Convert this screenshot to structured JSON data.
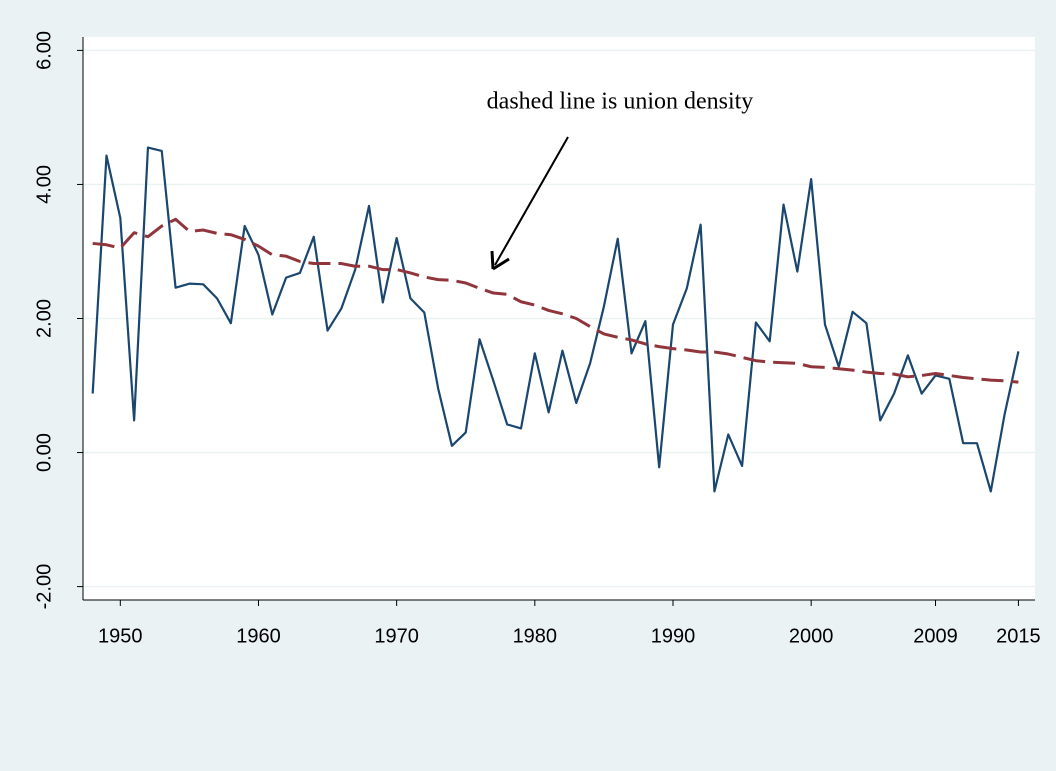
{
  "chart_data": {
    "type": "line",
    "annotation": "dashed line is union density",
    "x": [
      1948,
      1949,
      1950,
      1951,
      1952,
      1953,
      1954,
      1955,
      1956,
      1957,
      1958,
      1959,
      1960,
      1961,
      1962,
      1963,
      1964,
      1965,
      1966,
      1967,
      1968,
      1969,
      1970,
      1971,
      1972,
      1973,
      1974,
      1975,
      1976,
      1977,
      1978,
      1979,
      1980,
      1981,
      1982,
      1983,
      1984,
      1985,
      1986,
      1987,
      1988,
      1989,
      1990,
      1991,
      1992,
      1993,
      1994,
      1995,
      1996,
      1997,
      1998,
      1999,
      2000,
      2001,
      2002,
      2003,
      2004,
      2005,
      2006,
      2007,
      2008,
      2009,
      2010,
      2011,
      2012,
      2013,
      2014,
      2015
    ],
    "series": [
      {
        "color": "#1a476f",
        "dash": false,
        "values": [
          0.88,
          4.43,
          3.5,
          0.48,
          4.55,
          4.5,
          2.46,
          2.52,
          2.51,
          2.3,
          1.93,
          3.38,
          2.95,
          2.06,
          2.61,
          2.68,
          3.22,
          1.82,
          2.15,
          2.73,
          3.68,
          2.24,
          3.2,
          2.3,
          2.09,
          0.96,
          0.1,
          0.3,
          1.69,
          1.07,
          0.42,
          0.36,
          1.48,
          0.6,
          1.52,
          0.74,
          1.33,
          2.18,
          3.19,
          1.48,
          1.96,
          -0.22,
          1.91,
          2.45,
          3.4,
          -0.58,
          0.27,
          -0.2,
          1.94,
          1.66,
          3.7,
          2.7,
          4.08,
          1.91,
          1.28,
          2.1,
          1.93,
          0.48,
          0.88,
          1.45,
          0.88,
          1.15,
          1.1,
          0.14,
          0.14,
          -0.58,
          0.57,
          1.51
        ]
      },
      {
        "color": "#90353b",
        "dash": true,
        "values": [
          3.12,
          3.1,
          3.05,
          3.28,
          3.22,
          3.38,
          3.48,
          3.3,
          3.32,
          3.27,
          3.25,
          3.18,
          3.08,
          2.95,
          2.93,
          2.85,
          2.82,
          2.82,
          2.82,
          2.78,
          2.78,
          2.73,
          2.73,
          2.68,
          2.62,
          2.58,
          2.57,
          2.53,
          2.45,
          2.38,
          2.36,
          2.25,
          2.2,
          2.12,
          2.07,
          2.0,
          1.88,
          1.77,
          1.72,
          1.68,
          1.62,
          1.58,
          1.55,
          1.53,
          1.5,
          1.5,
          1.47,
          1.42,
          1.37,
          1.35,
          1.34,
          1.33,
          1.28,
          1.27,
          1.25,
          1.23,
          1.2,
          1.18,
          1.17,
          1.13,
          1.15,
          1.18,
          1.15,
          1.12,
          1.1,
          1.08,
          1.07,
          1.05
        ]
      }
    ],
    "xlim": [
      1947.3,
      2016.2
    ],
    "xticks": [
      1950,
      1960,
      1970,
      1980,
      1990,
      2000,
      2009,
      2015
    ],
    "ylim": [
      -2.2,
      6.2
    ],
    "yticks": [
      {
        "value": -2,
        "label": "-2.00"
      },
      {
        "value": 0,
        "label": "0.00"
      },
      {
        "value": 2,
        "label": "2.00"
      },
      {
        "value": 4,
        "label": "4.00"
      },
      {
        "value": 6,
        "label": "6.00"
      }
    ],
    "grid": true
  }
}
